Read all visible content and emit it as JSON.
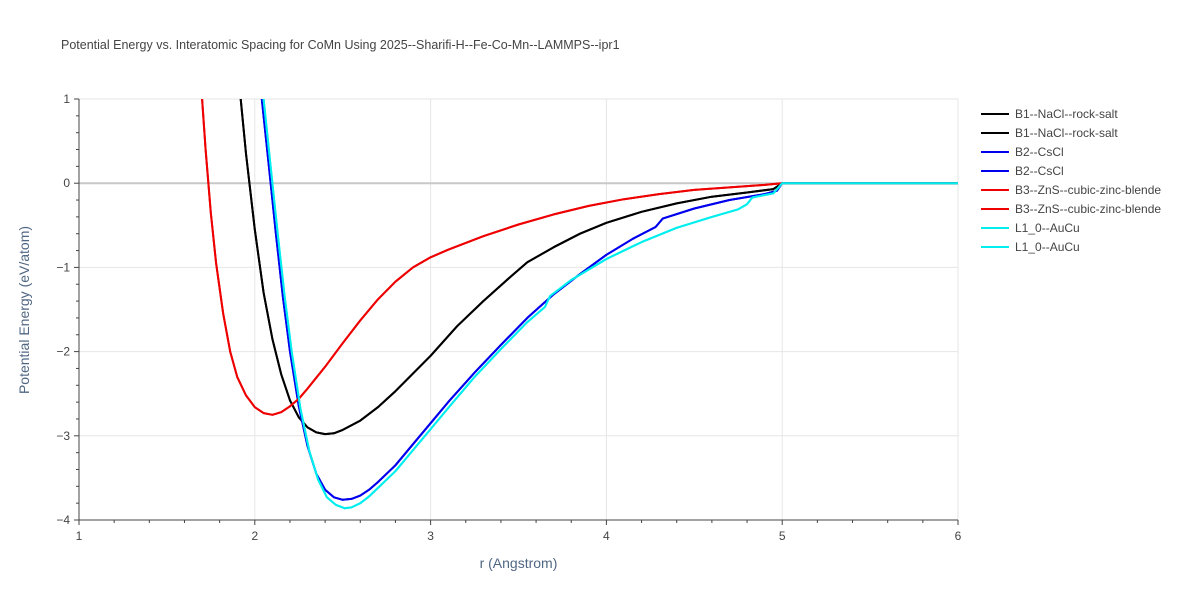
{
  "chart_data": {
    "type": "line",
    "title": "Potential Energy vs. Interatomic Spacing for CoMn Using 2025--Sharifi-H--Fe-Co-Mn--LAMMPS--ipr1",
    "xlabel": "r (Angstrom)",
    "ylabel": "Potential Energy (eV/atom)",
    "xlim": [
      1,
      6
    ],
    "ylim": [
      -4,
      1
    ],
    "x_ticks": [
      "1",
      "2",
      "3",
      "4",
      "5",
      "6"
    ],
    "y_ticks": [
      "1",
      "0",
      "−1",
      "−2",
      "−3",
      "−4"
    ],
    "grid": true,
    "legend_position": "right",
    "series": [
      {
        "name": "B1--NaCl--rock-salt",
        "color": "#000000",
        "x": [
          1.92,
          1.95,
          2.0,
          2.05,
          2.1,
          2.15,
          2.2,
          2.25,
          2.3,
          2.35,
          2.4,
          2.45,
          2.5,
          2.6,
          2.7,
          2.8,
          3.0,
          3.15,
          3.3,
          3.45,
          3.55,
          3.7,
          3.85,
          4.0,
          4.2,
          4.4,
          4.6,
          4.8,
          4.95,
          5.0,
          6.0
        ],
        "y": [
          1.0,
          0.35,
          -0.55,
          -1.3,
          -1.85,
          -2.27,
          -2.58,
          -2.78,
          -2.9,
          -2.96,
          -2.98,
          -2.97,
          -2.93,
          -2.82,
          -2.66,
          -2.47,
          -2.05,
          -1.7,
          -1.4,
          -1.12,
          -0.94,
          -0.76,
          -0.6,
          -0.47,
          -0.34,
          -0.24,
          -0.16,
          -0.11,
          -0.07,
          0.0,
          0.0
        ]
      },
      {
        "name": "B1--NaCl--rock-salt",
        "color": "#000000",
        "x": [
          1.92,
          1.95,
          2.0,
          2.05,
          2.1,
          2.15,
          2.2,
          2.25,
          2.3,
          2.35,
          2.4,
          2.45,
          2.5,
          2.6,
          2.7,
          2.8,
          3.0,
          3.15,
          3.3,
          3.45,
          3.55,
          3.7,
          3.85,
          4.0,
          4.2,
          4.4,
          4.6,
          4.8,
          4.95,
          5.0,
          6.0
        ],
        "y": [
          1.0,
          0.35,
          -0.55,
          -1.3,
          -1.85,
          -2.27,
          -2.58,
          -2.78,
          -2.9,
          -2.96,
          -2.98,
          -2.97,
          -2.93,
          -2.82,
          -2.66,
          -2.47,
          -2.05,
          -1.7,
          -1.4,
          -1.12,
          -0.94,
          -0.76,
          -0.6,
          -0.47,
          -0.34,
          -0.24,
          -0.16,
          -0.11,
          -0.07,
          0.0,
          0.0
        ]
      },
      {
        "name": "B2--CsCl",
        "color": "#0000ee",
        "x": [
          2.04,
          2.08,
          2.12,
          2.16,
          2.2,
          2.25,
          2.3,
          2.35,
          2.4,
          2.45,
          2.5,
          2.55,
          2.6,
          2.65,
          2.7,
          2.8,
          2.9,
          3.0,
          3.1,
          3.25,
          3.4,
          3.55,
          3.7,
          3.85,
          4.0,
          4.15,
          4.28,
          4.32,
          4.5,
          4.7,
          4.9,
          4.97,
          5.0,
          6.0
        ],
        "y": [
          1.0,
          0.2,
          -0.6,
          -1.35,
          -2.0,
          -2.65,
          -3.12,
          -3.45,
          -3.64,
          -3.73,
          -3.76,
          -3.75,
          -3.71,
          -3.64,
          -3.55,
          -3.35,
          -3.1,
          -2.85,
          -2.6,
          -2.25,
          -1.92,
          -1.6,
          -1.32,
          -1.08,
          -0.85,
          -0.66,
          -0.52,
          -0.42,
          -0.3,
          -0.2,
          -0.13,
          -0.09,
          0.0,
          0.0
        ]
      },
      {
        "name": "B2--CsCl",
        "color": "#0000ee",
        "x": [
          2.04,
          2.08,
          2.12,
          2.16,
          2.2,
          2.25,
          2.3,
          2.35,
          2.4,
          2.45,
          2.5,
          2.55,
          2.6,
          2.65,
          2.7,
          2.8,
          2.9,
          3.0,
          3.1,
          3.25,
          3.4,
          3.55,
          3.7,
          3.85,
          4.0,
          4.15,
          4.28,
          4.32,
          4.5,
          4.7,
          4.9,
          4.97,
          5.0,
          6.0
        ],
        "y": [
          1.0,
          0.2,
          -0.6,
          -1.35,
          -2.0,
          -2.65,
          -3.12,
          -3.45,
          -3.64,
          -3.73,
          -3.76,
          -3.75,
          -3.71,
          -3.64,
          -3.55,
          -3.35,
          -3.1,
          -2.85,
          -2.6,
          -2.25,
          -1.92,
          -1.6,
          -1.32,
          -1.08,
          -0.85,
          -0.66,
          -0.52,
          -0.42,
          -0.3,
          -0.2,
          -0.13,
          -0.09,
          0.0,
          0.0
        ]
      },
      {
        "name": "B3--ZnS--cubic-zinc-blende",
        "color": "#ee0000",
        "x": [
          1.7,
          1.72,
          1.75,
          1.78,
          1.82,
          1.86,
          1.9,
          1.95,
          2.0,
          2.05,
          2.1,
          2.15,
          2.2,
          2.25,
          2.3,
          2.4,
          2.5,
          2.6,
          2.7,
          2.8,
          2.9,
          3.0,
          3.1,
          3.3,
          3.5,
          3.7,
          3.9,
          4.1,
          4.3,
          4.5,
          4.7,
          4.9,
          5.0,
          6.0
        ],
        "y": [
          1.0,
          0.4,
          -0.35,
          -0.95,
          -1.55,
          -2.0,
          -2.3,
          -2.52,
          -2.66,
          -2.73,
          -2.75,
          -2.72,
          -2.65,
          -2.56,
          -2.44,
          -2.18,
          -1.9,
          -1.63,
          -1.38,
          -1.17,
          -1.0,
          -0.88,
          -0.79,
          -0.63,
          -0.49,
          -0.37,
          -0.27,
          -0.19,
          -0.13,
          -0.08,
          -0.05,
          -0.02,
          0.0,
          0.0
        ]
      },
      {
        "name": "B3--ZnS--cubic-zinc-blende",
        "color": "#ee0000",
        "x": [
          1.7,
          1.72,
          1.75,
          1.78,
          1.82,
          1.86,
          1.9,
          1.95,
          2.0,
          2.05,
          2.1,
          2.15,
          2.2,
          2.25,
          2.3,
          2.4,
          2.5,
          2.6,
          2.7,
          2.8,
          2.9,
          3.0,
          3.1,
          3.3,
          3.5,
          3.7,
          3.9,
          4.1,
          4.3,
          4.5,
          4.7,
          4.9,
          5.0,
          6.0
        ],
        "y": [
          1.0,
          0.4,
          -0.35,
          -0.95,
          -1.55,
          -2.0,
          -2.3,
          -2.52,
          -2.66,
          -2.73,
          -2.75,
          -2.72,
          -2.65,
          -2.56,
          -2.44,
          -2.18,
          -1.9,
          -1.63,
          -1.38,
          -1.17,
          -1.0,
          -0.88,
          -0.79,
          -0.63,
          -0.49,
          -0.37,
          -0.27,
          -0.19,
          -0.13,
          -0.08,
          -0.05,
          -0.02,
          0.0,
          0.0
        ]
      },
      {
        "name": "L1_0--AuCu",
        "color": "#00eeee",
        "x": [
          2.05,
          2.09,
          2.13,
          2.17,
          2.21,
          2.26,
          2.31,
          2.36,
          2.41,
          2.46,
          2.51,
          2.55,
          2.6,
          2.65,
          2.7,
          2.8,
          2.9,
          3.0,
          3.1,
          3.25,
          3.4,
          3.55,
          3.65,
          3.68,
          3.8,
          4.0,
          4.2,
          4.4,
          4.6,
          4.75,
          4.8,
          4.83,
          4.95,
          5.0,
          6.0
        ],
        "y": [
          1.0,
          0.2,
          -0.6,
          -1.35,
          -2.0,
          -2.68,
          -3.18,
          -3.52,
          -3.73,
          -3.82,
          -3.86,
          -3.85,
          -3.8,
          -3.72,
          -3.62,
          -3.42,
          -3.17,
          -2.92,
          -2.67,
          -2.3,
          -1.97,
          -1.65,
          -1.47,
          -1.34,
          -1.15,
          -0.9,
          -0.7,
          -0.53,
          -0.4,
          -0.31,
          -0.25,
          -0.17,
          -0.12,
          0.0,
          0.0
        ]
      },
      {
        "name": "L1_0--AuCu",
        "color": "#00eeee",
        "x": [
          2.05,
          2.09,
          2.13,
          2.17,
          2.21,
          2.26,
          2.31,
          2.36,
          2.41,
          2.46,
          2.51,
          2.55,
          2.6,
          2.65,
          2.7,
          2.8,
          2.9,
          3.0,
          3.1,
          3.25,
          3.4,
          3.55,
          3.65,
          3.68,
          3.8,
          4.0,
          4.2,
          4.4,
          4.6,
          4.75,
          4.8,
          4.83,
          4.95,
          5.0,
          6.0
        ],
        "y": [
          1.0,
          0.2,
          -0.6,
          -1.35,
          -2.0,
          -2.68,
          -3.18,
          -3.52,
          -3.73,
          -3.82,
          -3.86,
          -3.85,
          -3.8,
          -3.72,
          -3.62,
          -3.42,
          -3.17,
          -2.92,
          -2.67,
          -2.3,
          -1.97,
          -1.65,
          -1.47,
          -1.34,
          -1.15,
          -0.9,
          -0.7,
          -0.53,
          -0.4,
          -0.31,
          -0.25,
          -0.17,
          -0.12,
          0.0,
          0.0
        ]
      }
    ]
  }
}
